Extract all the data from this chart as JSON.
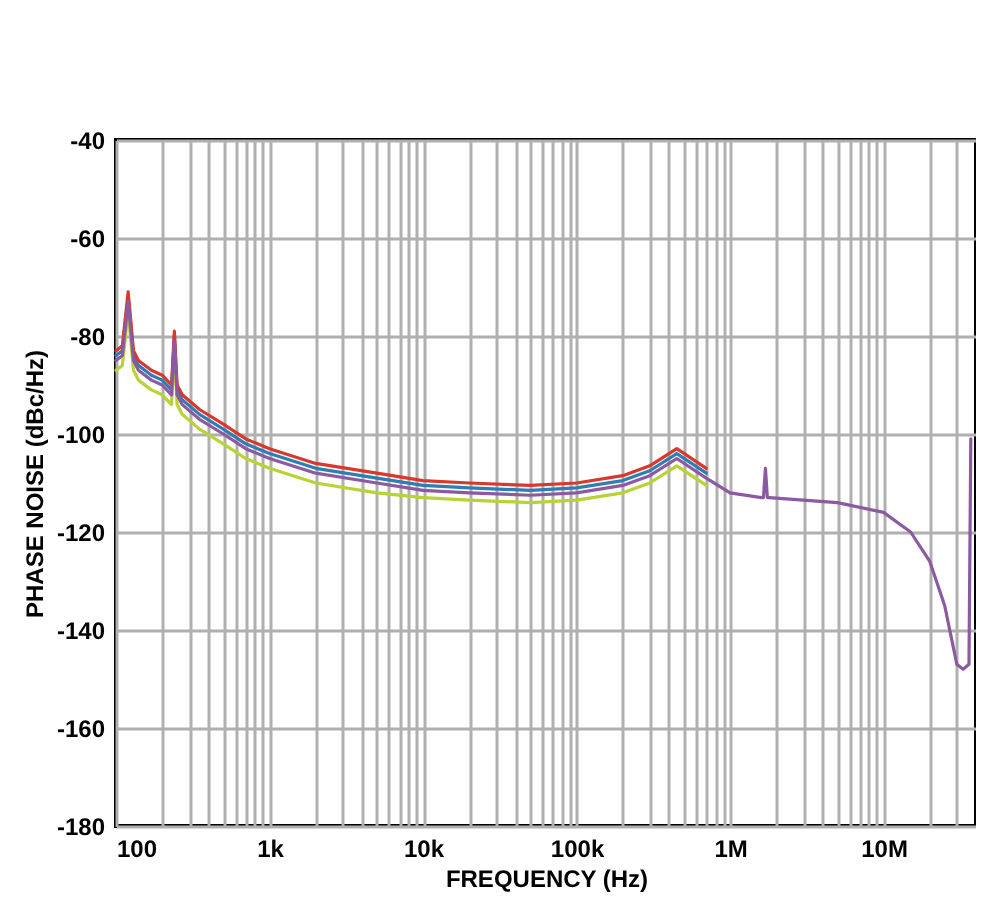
{
  "chart_data": {
    "type": "line",
    "xlabel": "FREQUENCY (Hz)",
    "ylabel": "PHASE NOISE (dBc/Hz)",
    "log": "x",
    "grid": true,
    "legend": false,
    "line_style": "solid",
    "marker": "none",
    "x": [
      100,
      110,
      120,
      130,
      140,
      170,
      200,
      230,
      240,
      250,
      270,
      350,
      500,
      700,
      1000,
      2000,
      5000,
      10000,
      20000,
      50000,
      100000,
      200000,
      300000,
      450000,
      700000,
      1000000,
      1600000,
      1650000,
      1700000,
      1750000,
      1800000,
      3000000,
      5000000,
      10000000,
      15000000,
      20000000,
      25000000,
      30000000,
      33000000,
      36000000,
      37000000
    ],
    "xlim": [
      100,
      40000000
    ],
    "xticks": [
      {
        "value": 100,
        "label": "100"
      },
      {
        "value": 200,
        "label": null
      },
      {
        "value": 300,
        "label": null
      },
      {
        "value": 400,
        "label": null
      },
      {
        "value": 500,
        "label": null
      },
      {
        "value": 600,
        "label": null
      },
      {
        "value": 700,
        "label": null
      },
      {
        "value": 800,
        "label": null
      },
      {
        "value": 900,
        "label": null
      },
      {
        "value": 1000,
        "label": "1k"
      },
      {
        "value": 2000,
        "label": null
      },
      {
        "value": 3000,
        "label": null
      },
      {
        "value": 4000,
        "label": null
      },
      {
        "value": 5000,
        "label": null
      },
      {
        "value": 6000,
        "label": null
      },
      {
        "value": 7000,
        "label": null
      },
      {
        "value": 8000,
        "label": null
      },
      {
        "value": 9000,
        "label": null
      },
      {
        "value": 10000,
        "label": "10k"
      },
      {
        "value": 20000,
        "label": null
      },
      {
        "value": 30000,
        "label": null
      },
      {
        "value": 40000,
        "label": null
      },
      {
        "value": 50000,
        "label": null
      },
      {
        "value": 60000,
        "label": null
      },
      {
        "value": 70000,
        "label": null
      },
      {
        "value": 80000,
        "label": null
      },
      {
        "value": 90000,
        "label": null
      },
      {
        "value": 100000,
        "label": "100k"
      },
      {
        "value": 200000,
        "label": null
      },
      {
        "value": 300000,
        "label": null
      },
      {
        "value": 400000,
        "label": null
      },
      {
        "value": 500000,
        "label": null
      },
      {
        "value": 600000,
        "label": null
      },
      {
        "value": 700000,
        "label": null
      },
      {
        "value": 800000,
        "label": null
      },
      {
        "value": 900000,
        "label": null
      },
      {
        "value": 1000000,
        "label": "1M"
      },
      {
        "value": 2000000,
        "label": null
      },
      {
        "value": 3000000,
        "label": null
      },
      {
        "value": 4000000,
        "label": null
      },
      {
        "value": 5000000,
        "label": null
      },
      {
        "value": 6000000,
        "label": null
      },
      {
        "value": 7000000,
        "label": null
      },
      {
        "value": 8000000,
        "label": null
      },
      {
        "value": 9000000,
        "label": null
      },
      {
        "value": 10000000,
        "label": "10M"
      },
      {
        "value": 20000000,
        "label": null
      },
      {
        "value": 30000000,
        "label": null
      }
    ],
    "ylim": [
      -180,
      -40
    ],
    "yticks": [
      -180,
      -160,
      -140,
      -120,
      -100,
      -80,
      -60,
      -40
    ],
    "series": [
      {
        "color": "#2e7db5",
        "values": [
          -84,
          -83,
          -72,
          -84,
          -86,
          -88,
          -89,
          -91,
          -80,
          -91,
          -93,
          -96,
          -99,
          -102,
          -104,
          -107,
          -109,
          -110.5,
          -111,
          -111.5,
          -111,
          -109.5,
          -107.5,
          -104,
          -108,
          null,
          null,
          null,
          null,
          null,
          null,
          null,
          null,
          null,
          null,
          null,
          null,
          null,
          null,
          null,
          null
        ]
      },
      {
        "color": "#d8392c",
        "values": [
          -83,
          -82,
          -71,
          -83,
          -85,
          -87,
          -88,
          -90,
          -79,
          -90,
          -92,
          -95,
          -98,
          -101,
          -103,
          -106,
          -108,
          -109.5,
          -110,
          -110.5,
          -110,
          -108.5,
          -106.5,
          -103,
          -107,
          null,
          null,
          null,
          null,
          null,
          null,
          null,
          null,
          null,
          null,
          null,
          null,
          null,
          null,
          null,
          null
        ]
      },
      {
        "color": "#b8d334",
        "values": [
          -87,
          -86,
          -75,
          -87,
          -89,
          -91,
          -92,
          -94,
          -83,
          -94,
          -96,
          -99,
          -102,
          -105,
          -107,
          -110,
          -112,
          -113,
          -113.5,
          -114,
          -113.5,
          -112,
          -110,
          -106.5,
          -110.5,
          null,
          null,
          null,
          null,
          null,
          null,
          null,
          null,
          null,
          null,
          null,
          null,
          null,
          null,
          null,
          null
        ]
      },
      {
        "color": "#8c5aa0",
        "values": [
          -85,
          -84,
          -73,
          -85,
          -87,
          -89,
          -90,
          -92,
          -81,
          -92,
          -94,
          -97,
          -100,
          -103,
          -105,
          -108,
          -110,
          -111.5,
          -112,
          -112.5,
          -112,
          -110.5,
          -108.5,
          -105,
          -109,
          -112,
          -113,
          -113,
          -107,
          -113,
          -113,
          -113.5,
          -114,
          -116,
          -120,
          -126,
          -135,
          -147,
          -148,
          -147,
          -101
        ]
      }
    ]
  }
}
